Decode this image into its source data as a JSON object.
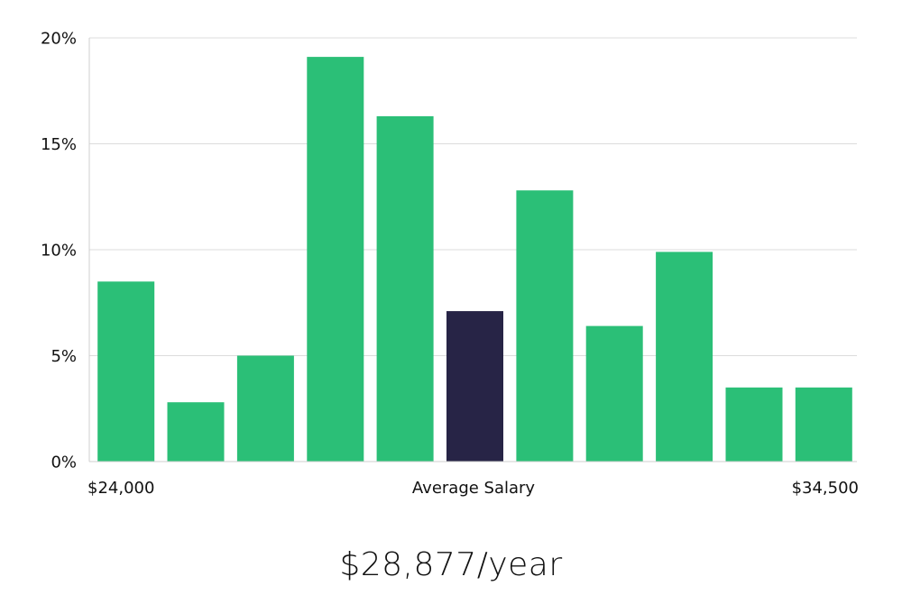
{
  "chart_data": {
    "type": "bar",
    "title": "",
    "xlabel": "Average Salary",
    "ylabel": "",
    "ylim": [
      0,
      20
    ],
    "yticks": [
      "0%",
      "5%",
      "10%",
      "15%",
      "20%"
    ],
    "ytick_values": [
      0,
      5,
      10,
      15,
      20
    ],
    "x_range_labels": {
      "min": "$24,000",
      "max": "$34,500"
    },
    "values": [
      8.5,
      2.8,
      5.0,
      19.1,
      16.3,
      7.1,
      12.8,
      6.4,
      9.9,
      3.5,
      3.5
    ],
    "highlight_index": 5,
    "colors": {
      "bar": "#2bbf77",
      "highlight": "#272446"
    },
    "grid": true
  },
  "headline": "$28,877/year"
}
